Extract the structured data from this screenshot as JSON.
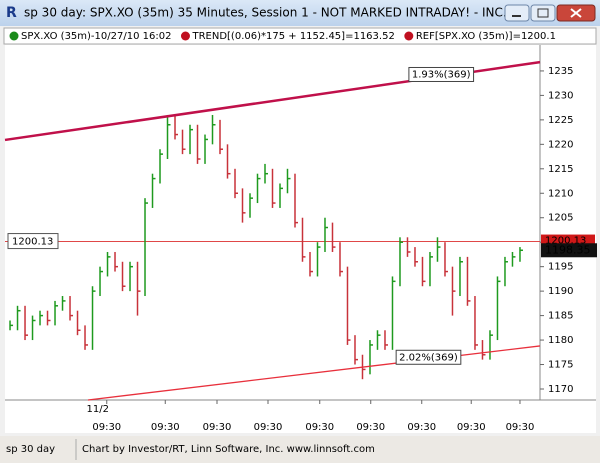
{
  "window": {
    "title": "sp 30 day: SPX.XO (35m) 35 Minutes, Session 1 - NOT MARKED INTRADAY! - INC...",
    "legend": [
      "SPX.XO (35m)-10/27/10 16:02",
      "TREND[(0.06)*175 + 1152.45]=1163.52",
      "REF[SPX.XO (35m)]=1200.1"
    ],
    "legend_colors": [
      "#1a8a1a",
      "#c01020",
      "#c01020"
    ],
    "status": [
      "sp 30 day",
      "Chart by Investor/RT, Linn Software, Inc. www.linnsoft.com"
    ]
  },
  "chart_data": {
    "type": "ohlc",
    "up_color": "#1e9a1e",
    "down_color": "#c8323a",
    "x": [
      0,
      1,
      2,
      3,
      4,
      5,
      6,
      7,
      8,
      9,
      10,
      11,
      12,
      13,
      14,
      15,
      16,
      17,
      18,
      19,
      20,
      21,
      22,
      23,
      24,
      25,
      26,
      27,
      28,
      29,
      30,
      31,
      32,
      33,
      34,
      35,
      36,
      37,
      38,
      39,
      40,
      41,
      42,
      43,
      44,
      45,
      46,
      47,
      48,
      49,
      50,
      51,
      52,
      53,
      54,
      55,
      56,
      57,
      58,
      59,
      60,
      61,
      62,
      63,
      64,
      65,
      66,
      67,
      68
    ],
    "high": [
      1184,
      1187,
      1187,
      1185,
      1186,
      1186,
      1188,
      1189,
      1189,
      1186,
      1183,
      1191,
      1195,
      1198,
      1198,
      1196,
      1196,
      1196,
      1209,
      1214,
      1219,
      1226,
      1226,
      1223,
      1224,
      1224,
      1222,
      1226,
      1225,
      1220,
      1215,
      1211,
      1210,
      1214,
      1216,
      1215,
      1212,
      1215,
      1214,
      1205,
      1198,
      1200,
      1205,
      1204,
      1200,
      1195,
      1181,
      1177,
      1180,
      1182,
      1182,
      1193,
      1201,
      1201,
      1199,
      1197,
      1198,
      1201,
      1200,
      1195,
      1197,
      1197,
      1189,
      1180,
      1182,
      1193,
      1197,
      1198,
      1199
    ],
    "low": [
      1182,
      1182,
      1180,
      1180,
      1183,
      1183,
      1183,
      1186,
      1184,
      1181,
      1178,
      1178,
      1189,
      1193,
      1194,
      1190,
      1190,
      1185,
      1189,
      1207,
      1212,
      1217,
      1221,
      1218,
      1218,
      1216,
      1216,
      1220,
      1218,
      1213,
      1209,
      1204,
      1205,
      1208,
      1212,
      1207,
      1207,
      1210,
      1203,
      1196,
      1193,
      1193,
      1198,
      1198,
      1193,
      1179,
      1175,
      1172,
      1173,
      1178,
      1178,
      1178,
      1191,
      1197,
      1195,
      1191,
      1191,
      1196,
      1193,
      1185,
      1189,
      1187,
      1178,
      1176,
      1176,
      1180,
      1191,
      1195,
      1196
    ],
    "close": [
      1183,
      1186,
      1181,
      1184,
      1185,
      1184,
      1187,
      1188,
      1185,
      1182,
      1179,
      1190,
      1194,
      1197,
      1195,
      1191,
      1195,
      1190,
      1208,
      1213,
      1218,
      1224,
      1222,
      1219,
      1223,
      1217,
      1221,
      1224,
      1219,
      1214,
      1210,
      1206,
      1209,
      1213,
      1214,
      1208,
      1211,
      1213,
      1204,
      1197,
      1194,
      1199,
      1203,
      1199,
      1194,
      1180,
      1176,
      1174,
      1179,
      1181,
      1179,
      1192,
      1200,
      1198,
      1196,
      1192,
      1197,
      1199,
      1194,
      1190,
      1196,
      1188,
      1179,
      1177,
      1181,
      1192,
      1196,
      1197,
      1198.35
    ],
    "xlim": [
      -0.67,
      70.67
    ],
    "xticks": [
      {
        "value": 12.9,
        "label": "09:30"
      },
      {
        "value": 20.7,
        "label": "09:30"
      },
      {
        "value": 27.6,
        "label": "09:30"
      },
      {
        "value": 34.4,
        "label": "09:30"
      },
      {
        "value": 41.3,
        "label": "09:30"
      },
      {
        "value": 48.1,
        "label": "09:30"
      },
      {
        "value": 54.9,
        "label": "09:30"
      },
      {
        "value": 61.5,
        "label": "09:30"
      },
      {
        "value": 68,
        "label": "09:30"
      }
    ],
    "date_labels": [
      {
        "value": 11.7,
        "label": "11/2"
      }
    ],
    "ylim": [
      1167.75,
      1240.3
    ],
    "yticks": [
      1170,
      1175,
      1180,
      1185,
      1190,
      1195,
      1200,
      1205,
      1210,
      1215,
      1220,
      1225,
      1230,
      1235
    ],
    "trendlines": [
      {
        "x": [
          -0.67,
          70.67
        ],
        "y": [
          1220.9,
          1236.8
        ],
        "color": "#c0104a",
        "label": "1.93%(369)",
        "label_x": 57.5
      },
      {
        "x": [
          10.4,
          70.67
        ],
        "y": [
          1167.75,
          1178.8
        ],
        "color": "#e8303c",
        "label": "2.02%(369)",
        "label_x": 55.8
      }
    ],
    "ref_line": {
      "value": 1200.13,
      "color": "#e04848"
    }
  }
}
